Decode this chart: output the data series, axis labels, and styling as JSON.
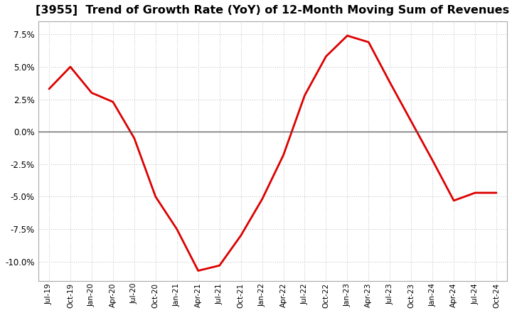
{
  "title": "[3955]  Trend of Growth Rate (YoY) of 12-Month Moving Sum of Revenues",
  "title_fontsize": 11.5,
  "line_color": "#dd0000",
  "line_width": 2.0,
  "background_color": "#ffffff",
  "grid_color": "#bbbbbb",
  "ylim": [
    -0.115,
    0.085
  ],
  "yticks": [
    -0.1,
    -0.075,
    -0.05,
    -0.025,
    0.0,
    0.025,
    0.05,
    0.075
  ],
  "values": [
    0.033,
    0.05,
    0.03,
    0.023,
    -0.005,
    -0.05,
    -0.075,
    -0.107,
    -0.103,
    -0.08,
    -0.052,
    -0.018,
    0.028,
    0.058,
    0.074,
    0.069,
    0.038,
    0.008,
    -0.022,
    -0.053,
    -0.047,
    -0.047
  ],
  "xtick_labels": [
    "Jul-19",
    "Oct-19",
    "Jan-20",
    "Apr-20",
    "Jul-20",
    "Oct-20",
    "Jan-21",
    "Apr-21",
    "Jul-21",
    "Oct-21",
    "Jan-22",
    "Apr-22",
    "Jul-22",
    "Oct-22",
    "Jan-23",
    "Apr-23",
    "Jul-23",
    "Oct-23",
    "Jan-24",
    "Apr-24",
    "Jul-24",
    "Oct-24"
  ],
  "zero_line_color": "#555555",
  "spine_color": "#aaaaaa"
}
